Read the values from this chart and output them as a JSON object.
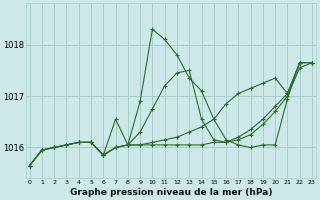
{
  "title": "Graphe pression niveau de la mer (hPa)",
  "bg_color": "#cce8e8",
  "grid_color": "#aacccc",
  "line_color": "#2d6b2d",
  "x_values": [
    0,
    1,
    2,
    3,
    4,
    5,
    6,
    7,
    8,
    9,
    10,
    11,
    12,
    13,
    14,
    15,
    16,
    17,
    18,
    19,
    20,
    21,
    22,
    23
  ],
  "ylim": [
    1015.4,
    1018.8
  ],
  "yticks": [
    1016,
    1017,
    1018
  ],
  "series": [
    [
      1015.65,
      1015.95,
      1016.0,
      1016.05,
      1016.1,
      1016.1,
      1015.85,
      1016.55,
      1016.05,
      1016.9,
      1018.3,
      1018.1,
      1017.8,
      1017.35,
      1017.1,
      1016.55,
      1016.15,
      1016.05,
      1016.0,
      1016.05,
      1016.05,
      1016.95,
      1017.65,
      1017.65
    ],
    [
      1015.65,
      1015.95,
      1016.0,
      1016.05,
      1016.1,
      1016.1,
      1015.85,
      1016.0,
      1016.05,
      1016.3,
      1016.75,
      1017.2,
      1017.45,
      1017.5,
      1016.55,
      1016.15,
      1016.1,
      1016.2,
      1016.35,
      1016.55,
      1016.8,
      1017.05,
      1017.65,
      1017.65
    ],
    [
      1015.65,
      1015.95,
      1016.0,
      1016.05,
      1016.1,
      1016.1,
      1015.85,
      1016.0,
      1016.05,
      1016.05,
      1016.05,
      1016.05,
      1016.05,
      1016.05,
      1016.05,
      1016.1,
      1016.1,
      1016.15,
      1016.25,
      1016.45,
      1016.7,
      1017.0,
      1017.55,
      1017.65
    ],
    [
      1015.65,
      1015.95,
      1016.0,
      1016.05,
      1016.1,
      1016.1,
      1015.85,
      1016.0,
      1016.05,
      1016.05,
      1016.1,
      1016.15,
      1016.2,
      1016.3,
      1016.4,
      1016.55,
      1016.85,
      1017.05,
      1017.15,
      1017.25,
      1017.35,
      1017.05,
      1017.65,
      1017.65
    ]
  ]
}
